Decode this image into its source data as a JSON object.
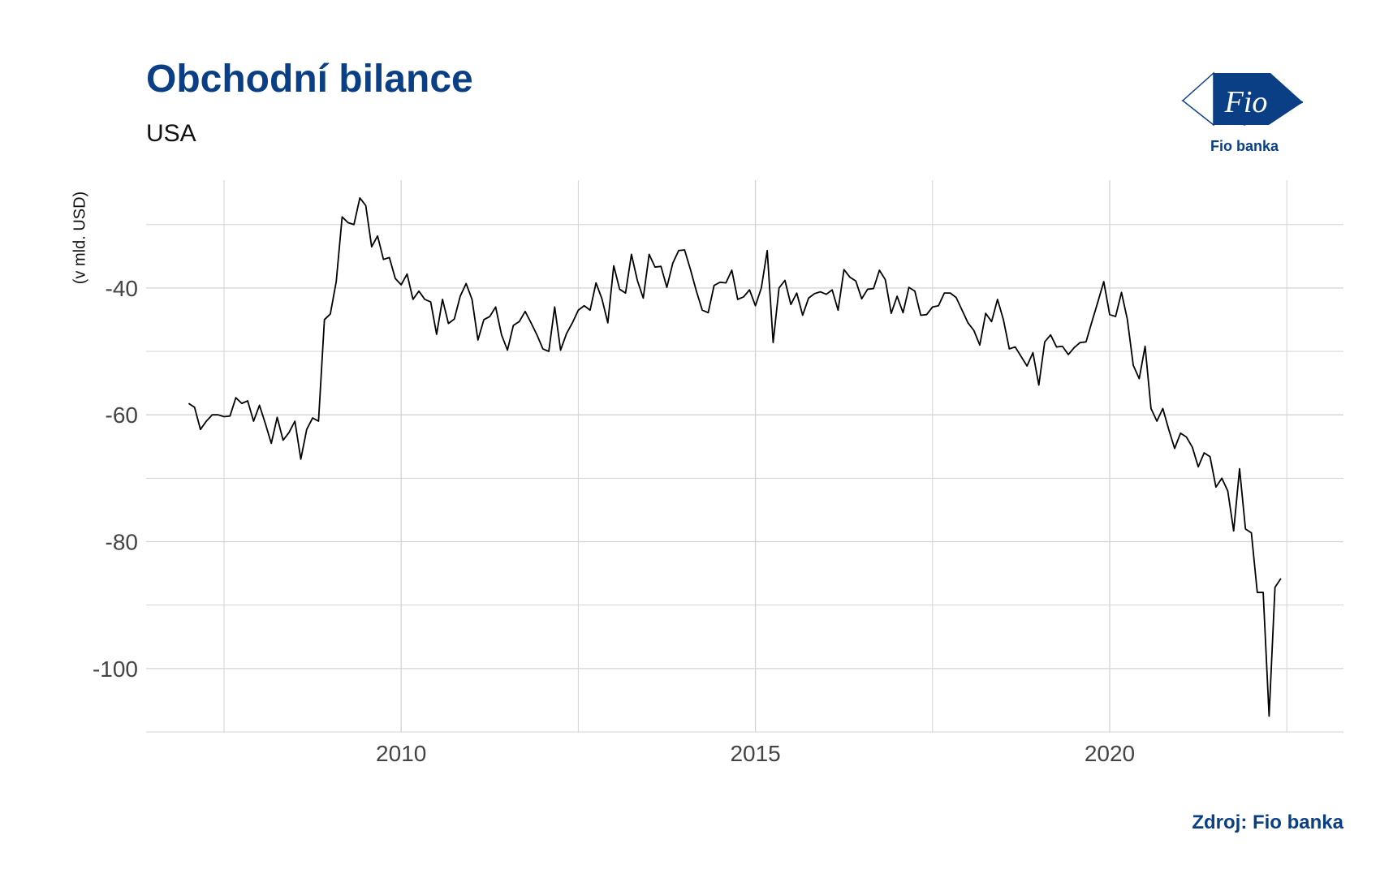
{
  "title": "Obchodní bilance",
  "subtitle": "USA",
  "source": "Zdroj: Fio banka",
  "logo": {
    "mark_text": "Fio",
    "brand_text": "Fio banka",
    "icon": "fio-banka-logo"
  },
  "colors": {
    "title": "#0a3f86",
    "line": "#000000",
    "grid": "#d3d3d3"
  },
  "chart_data": {
    "type": "line",
    "title": "Obchodní bilance",
    "subtitle": "USA",
    "xlabel": "",
    "ylabel": "(v mld. USD)",
    "xlim": [
      2006.4,
      2023.3
    ],
    "ylim": [
      -110,
      -23
    ],
    "xticks": [
      2010,
      2015,
      2020
    ],
    "yticks": [
      -40,
      -60,
      -80,
      -100
    ],
    "grid": true,
    "x_start": 2007.0,
    "x_step_months": 1,
    "series": [
      {
        "values": [
          -58.2,
          -58.8,
          -62.3,
          -61.0,
          -60.0,
          -60.0,
          -60.3,
          -60.2,
          -57.3,
          -58.2,
          -57.8,
          -61.0,
          -58.5,
          -61.4,
          -64.5,
          -60.4,
          -64.0,
          -62.8,
          -61.0,
          -67.0,
          -62.3,
          -60.5,
          -61.0,
          -45.0,
          -44.1,
          -39.0,
          -28.8,
          -29.7,
          -30.0,
          -25.8,
          -27.0,
          -33.5,
          -31.8,
          -35.5,
          -35.2,
          -38.5,
          -39.5,
          -37.8,
          -41.8,
          -40.5,
          -41.8,
          -42.2,
          -47.3,
          -41.8,
          -45.6,
          -44.9,
          -41.3,
          -39.3,
          -41.8,
          -48.2,
          -45.0,
          -44.5,
          -43.0,
          -47.4,
          -49.8,
          -45.9,
          -45.3,
          -43.7,
          -45.5,
          -47.4,
          -49.6,
          -50.0,
          -43.0,
          -49.8,
          -47.2,
          -45.5,
          -43.5,
          -42.8,
          -43.5,
          -39.2,
          -41.7,
          -45.5,
          -36.5,
          -40.2,
          -40.8,
          -34.7,
          -38.8,
          -41.6,
          -34.7,
          -36.7,
          -36.6,
          -39.9,
          -36.1,
          -34.1,
          -34.0,
          -37.1,
          -40.5,
          -43.5,
          -43.9,
          -39.6,
          -39.1,
          -39.2,
          -37.2,
          -41.8,
          -41.4,
          -40.3,
          -42.8,
          -40.0,
          -34.1,
          -48.6,
          -40.0,
          -38.8,
          -42.6,
          -40.8,
          -44.3,
          -41.6,
          -40.9,
          -40.6,
          -41.0,
          -40.3,
          -43.5,
          -37.1,
          -38.3,
          -38.9,
          -41.7,
          -40.2,
          -40.1,
          -37.2,
          -38.7,
          -44.0,
          -41.3,
          -43.9,
          -39.9,
          -40.5,
          -44.3,
          -44.2,
          -43.0,
          -42.8,
          -40.8,
          -40.8,
          -41.5,
          -43.5,
          -45.5,
          -46.7,
          -49.0,
          -44.0,
          -45.3,
          -41.8,
          -45.0,
          -49.6,
          -49.3,
          -50.8,
          -52.3,
          -50.2,
          -55.3,
          -48.5,
          -47.4,
          -49.3,
          -49.2,
          -50.5,
          -49.4,
          -48.6,
          -48.5,
          -45.3,
          -42.2,
          -39.0,
          -44.2,
          -44.5,
          -40.7,
          -45.0,
          -52.2,
          -54.3,
          -49.2,
          -59.0,
          -61.0,
          -59.0,
          -62.3,
          -65.3,
          -62.9,
          -63.5,
          -65.1,
          -68.2,
          -66.0,
          -66.6,
          -71.4,
          -70.0,
          -72.0,
          -78.3,
          -68.5,
          -78.0,
          -78.6,
          -88.0,
          -88.0,
          -107.5,
          -87.2,
          -85.8
        ]
      }
    ]
  }
}
